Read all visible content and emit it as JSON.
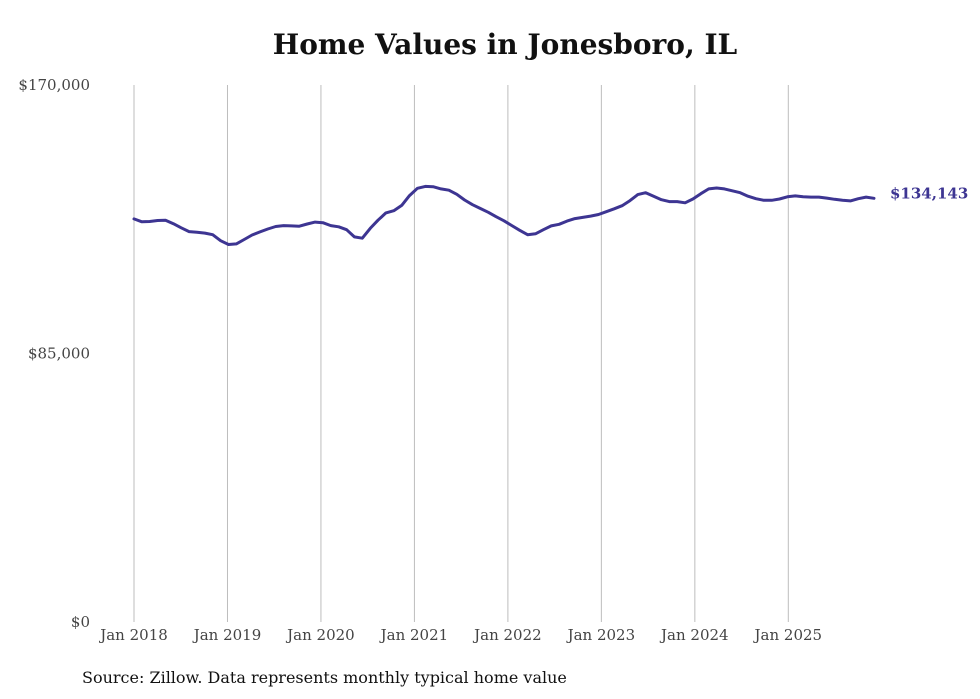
{
  "chart_data": {
    "type": "line",
    "title": "Home Values in Jonesboro, IL",
    "source": "Source: Zillow. Data represents monthly typical home value",
    "ylim": [
      0,
      170000
    ],
    "y_ticks": [
      {
        "value": 0,
        "label": "$0"
      },
      {
        "value": 85000,
        "label": "$85,000"
      },
      {
        "value": 170000,
        "label": "$170,000"
      }
    ],
    "x_start_year": 2018,
    "x_end_year": 2025.9167,
    "x_ticks": [
      {
        "value": 2018,
        "label": "Jan 2018"
      },
      {
        "value": 2019,
        "label": "Jan 2019"
      },
      {
        "value": 2020,
        "label": "Jan 2020"
      },
      {
        "value": 2021,
        "label": "Jan 2021"
      },
      {
        "value": 2022,
        "label": "Jan 2022"
      },
      {
        "value": 2023,
        "label": "Jan 2023"
      },
      {
        "value": 2024,
        "label": "Jan 2024"
      },
      {
        "value": 2025,
        "label": "Jan 2025"
      }
    ],
    "grid_x": true,
    "grid_y": false,
    "series": [
      {
        "name": "Typical home value",
        "color": "#3d3592",
        "end_label": "$134,143",
        "values": [
          127600,
          126700,
          126800,
          127100,
          127200,
          126100,
          124800,
          123600,
          123400,
          123100,
          122600,
          120700,
          119500,
          119700,
          121100,
          122500,
          123500,
          124400,
          125200,
          125500,
          125400,
          125300,
          126000,
          126600,
          126400,
          125500,
          125100,
          124200,
          121900,
          121500,
          124600,
          127200,
          129500,
          130200,
          131900,
          135000,
          137300,
          137900,
          137800,
          137100,
          136700,
          135400,
          133600,
          132100,
          130900,
          129700,
          128300,
          127000,
          125500,
          124000,
          122600,
          122900,
          124200,
          125400,
          125900,
          126900,
          127700,
          128100,
          128500,
          129000,
          129900,
          130800,
          131800,
          133400,
          135300,
          135900,
          134800,
          133700,
          133100,
          133100,
          132700,
          133900,
          135600,
          137100,
          137400,
          137100,
          136500,
          135900,
          134800,
          134000,
          133500,
          133500,
          133900,
          134600,
          134900,
          134600,
          134500,
          134500,
          134200,
          133800,
          133500,
          133300,
          134000,
          134500,
          134143
        ]
      }
    ]
  }
}
